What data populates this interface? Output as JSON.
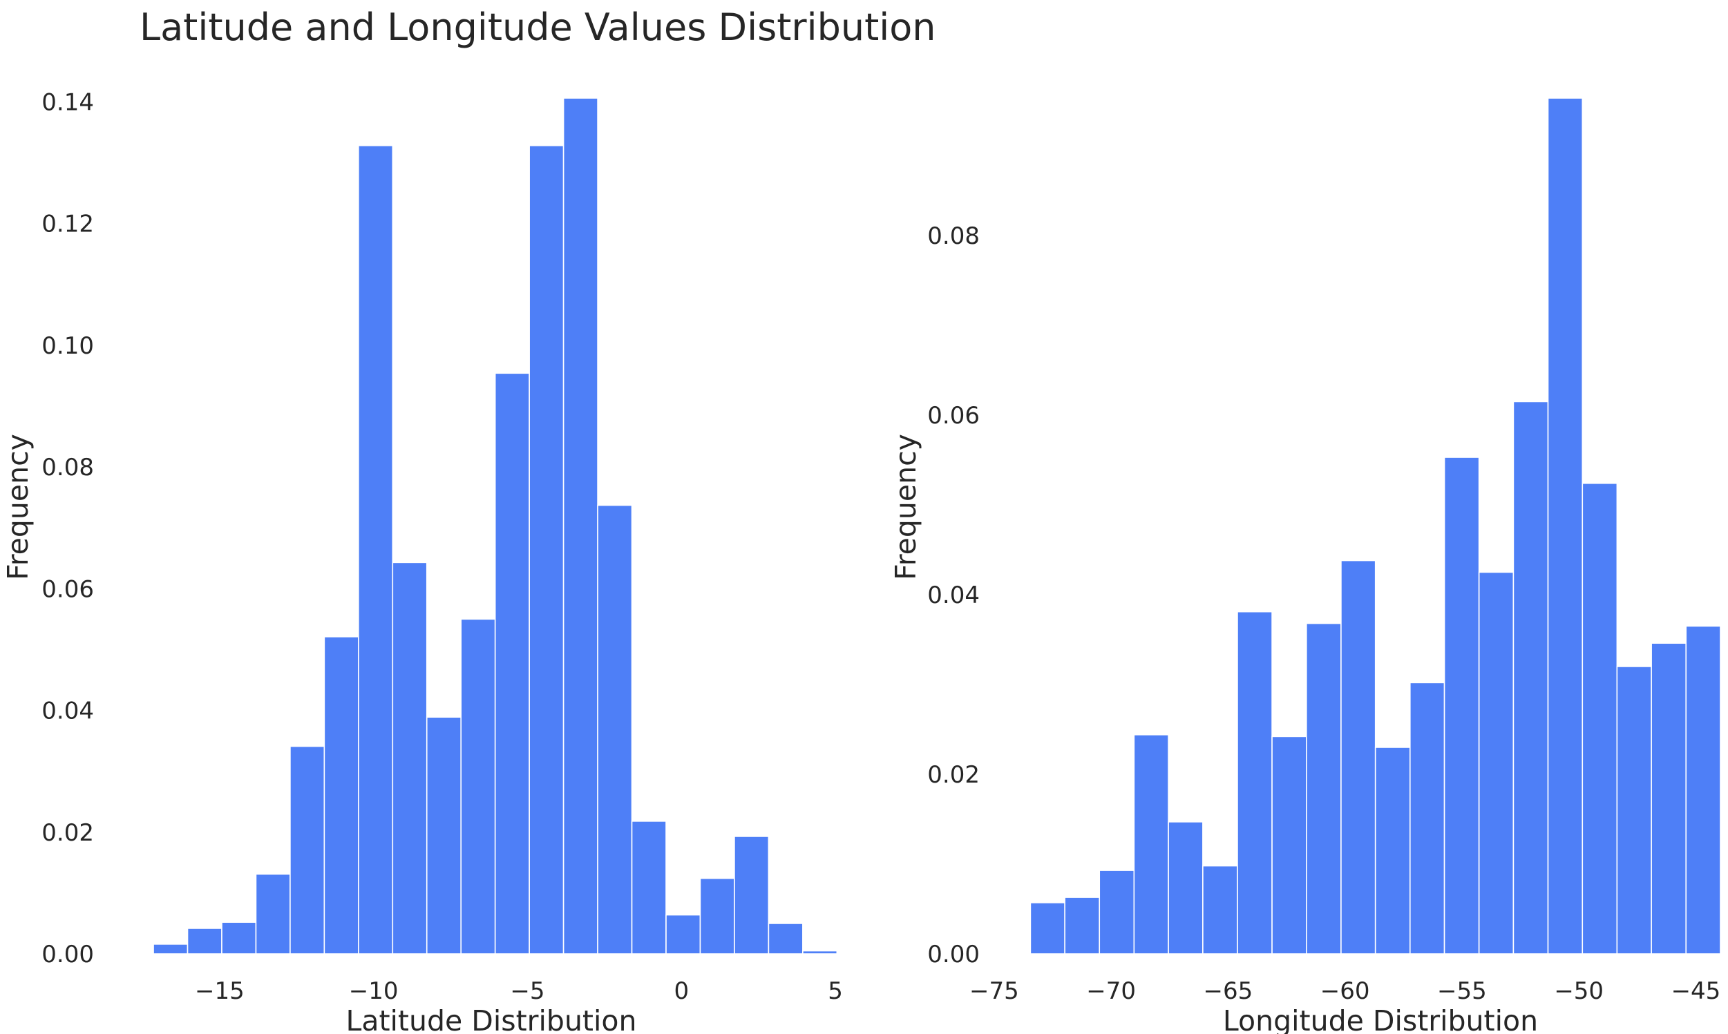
{
  "title": "Latitude and Longitude Values Distribution",
  "colors": {
    "bar": "#4e7ff7",
    "bar_edge": "#ffffff",
    "text": "#262626",
    "background": "#ffffff"
  },
  "chart_data": [
    {
      "type": "bar",
      "histogram": true,
      "xlabel": "Latitude Distribution",
      "ylabel": "Frequency",
      "xlim": [
        -17.6,
        5.2
      ],
      "ylim": [
        0,
        0.1406
      ],
      "xticks": [
        -15,
        -10,
        -5,
        0,
        5
      ],
      "xtick_labels": [
        "−15",
        "−10",
        "−5",
        "0",
        "5"
      ],
      "yticks": [
        0.0,
        0.02,
        0.04,
        0.06,
        0.08,
        0.1,
        0.12,
        0.14
      ],
      "ytick_labels": [
        "0.00",
        "0.02",
        "0.04",
        "0.06",
        "0.08",
        "0.10",
        "0.12",
        "0.14"
      ],
      "grid": false,
      "bin_edges": [
        -17.15,
        -16.04,
        -14.93,
        -13.82,
        -12.71,
        -11.6,
        -10.49,
        -9.38,
        -8.27,
        -7.16,
        -6.05,
        -4.94,
        -3.83,
        -2.72,
        -1.61,
        -0.5,
        0.61,
        1.72,
        2.83,
        3.94,
        5.05
      ],
      "values": [
        0.0016,
        0.0042,
        0.0052,
        0.0131,
        0.0341,
        0.0521,
        0.1328,
        0.0643,
        0.0389,
        0.055,
        0.0954,
        0.1328,
        0.1406,
        0.0737,
        0.0218,
        0.0064,
        0.0124,
        0.0193,
        0.005,
        0.0005
      ]
    },
    {
      "type": "bar",
      "histogram": true,
      "xlabel": "Longitude Distribution",
      "ylabel": "Frequency",
      "xlim": [
        -74.85,
        -43.95
      ],
      "ylim": [
        0,
        0.0953
      ],
      "xticks": [
        -75,
        -70,
        -65,
        -60,
        -55,
        -50,
        -45
      ],
      "xtick_labels": [
        "−75",
        "−70",
        "−65",
        "−60",
        "−55",
        "−50",
        "−45"
      ],
      "yticks": [
        0.0,
        0.02,
        0.04,
        0.06,
        0.08
      ],
      "ytick_labels": [
        "0.00",
        "0.02",
        "0.04",
        "0.06",
        "0.08"
      ],
      "grid": false,
      "bin_edges": [
        -73.45,
        -71.98,
        -70.5,
        -69.02,
        -67.55,
        -66.08,
        -64.6,
        -63.12,
        -61.65,
        -60.17,
        -58.7,
        -57.22,
        -55.75,
        -54.27,
        -52.8,
        -51.32,
        -49.85,
        -48.37,
        -46.9,
        -45.42,
        -43.95
      ],
      "values": [
        0.0057,
        0.0063,
        0.0093,
        0.0244,
        0.0147,
        0.0098,
        0.0381,
        0.0242,
        0.0368,
        0.0438,
        0.023,
        0.0302,
        0.0553,
        0.0425,
        0.0615,
        0.0953,
        0.0524,
        0.032,
        0.0346,
        0.0365
      ]
    }
  ]
}
